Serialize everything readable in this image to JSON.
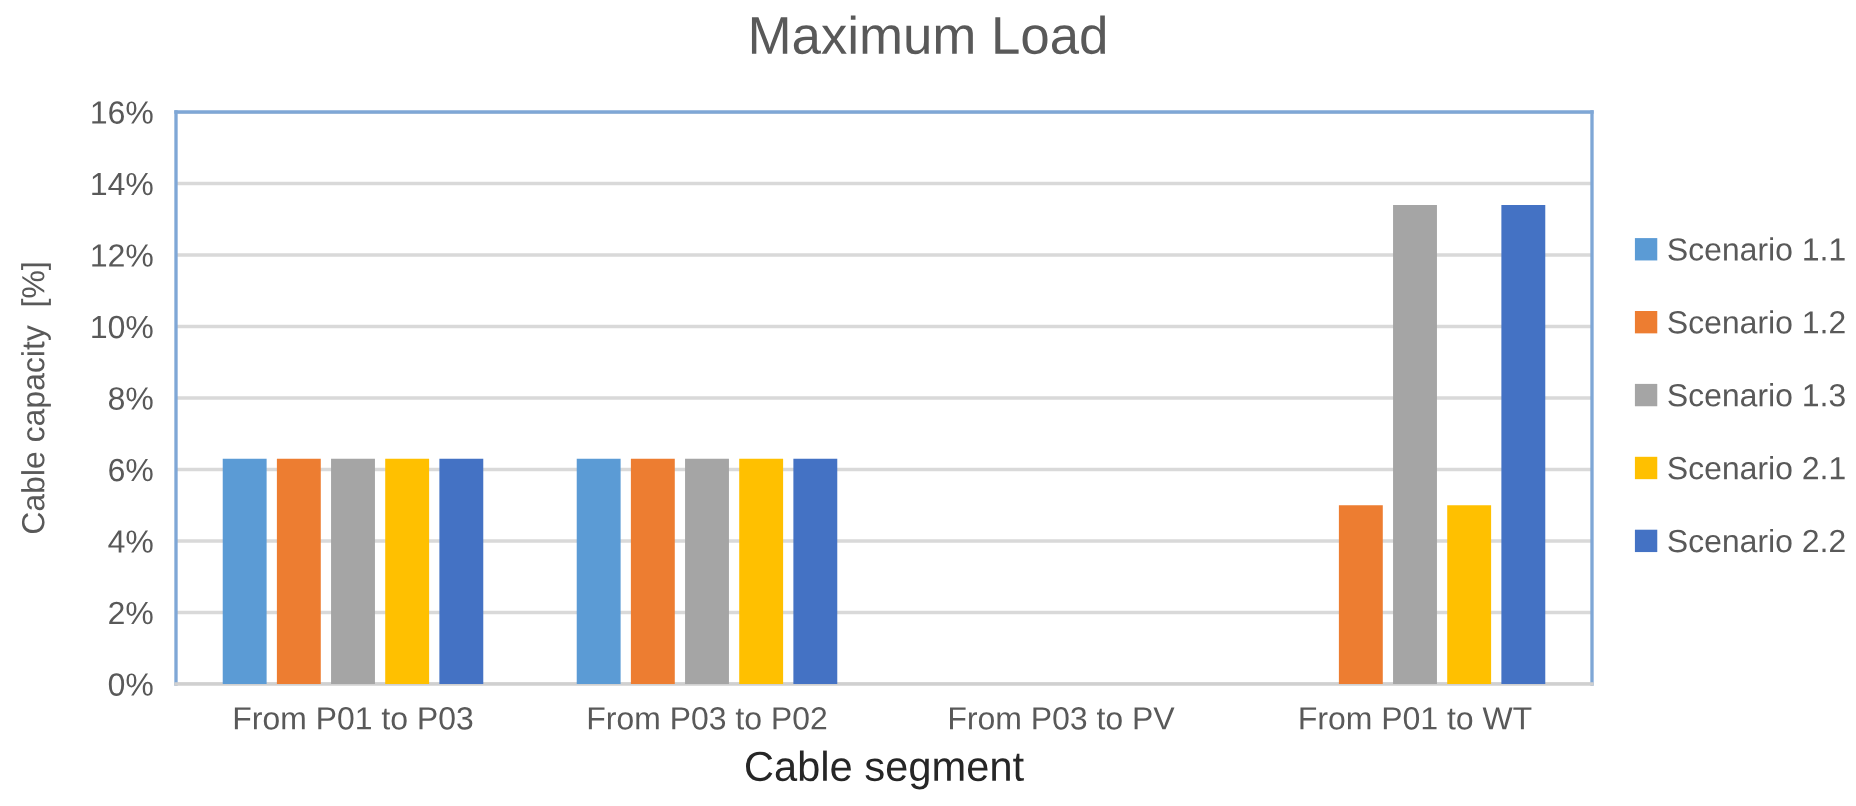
{
  "chart_data": {
    "type": "bar",
    "title": "Maximum Load",
    "xlabel": "Cable segment",
    "ylabel": "Cable capacity  [%]",
    "categories": [
      "From P01 to P03",
      "From P03 to P02",
      "From P03 to PV",
      "From P01 to WT"
    ],
    "series": [
      {
        "name": "Scenario 1.1",
        "color": "#5b9bd5",
        "values": [
          6.3,
          6.3,
          null,
          null
        ]
      },
      {
        "name": "Scenario 1.2",
        "color": "#ed7d31",
        "values": [
          6.3,
          6.3,
          null,
          5.0
        ]
      },
      {
        "name": "Scenario 1.3",
        "color": "#a5a5a5",
        "values": [
          6.3,
          6.3,
          null,
          13.4
        ]
      },
      {
        "name": "Scenario 2.1",
        "color": "#ffc000",
        "values": [
          6.3,
          6.3,
          null,
          5.0
        ]
      },
      {
        "name": "Scenario 2.2",
        "color": "#4472c4",
        "values": [
          6.3,
          6.3,
          null,
          13.4
        ]
      }
    ],
    "ylim": [
      0,
      16
    ],
    "yticks": [
      {
        "value": 0,
        "label": "0%"
      },
      {
        "value": 2,
        "label": "2%"
      },
      {
        "value": 4,
        "label": "4%"
      },
      {
        "value": 6,
        "label": "6%"
      },
      {
        "value": 8,
        "label": "8%"
      },
      {
        "value": 10,
        "label": "10%"
      },
      {
        "value": 12,
        "label": "12%"
      },
      {
        "value": 14,
        "label": "14%"
      },
      {
        "value": 16,
        "label": "16%"
      }
    ],
    "grid": "y",
    "legend": "right"
  }
}
